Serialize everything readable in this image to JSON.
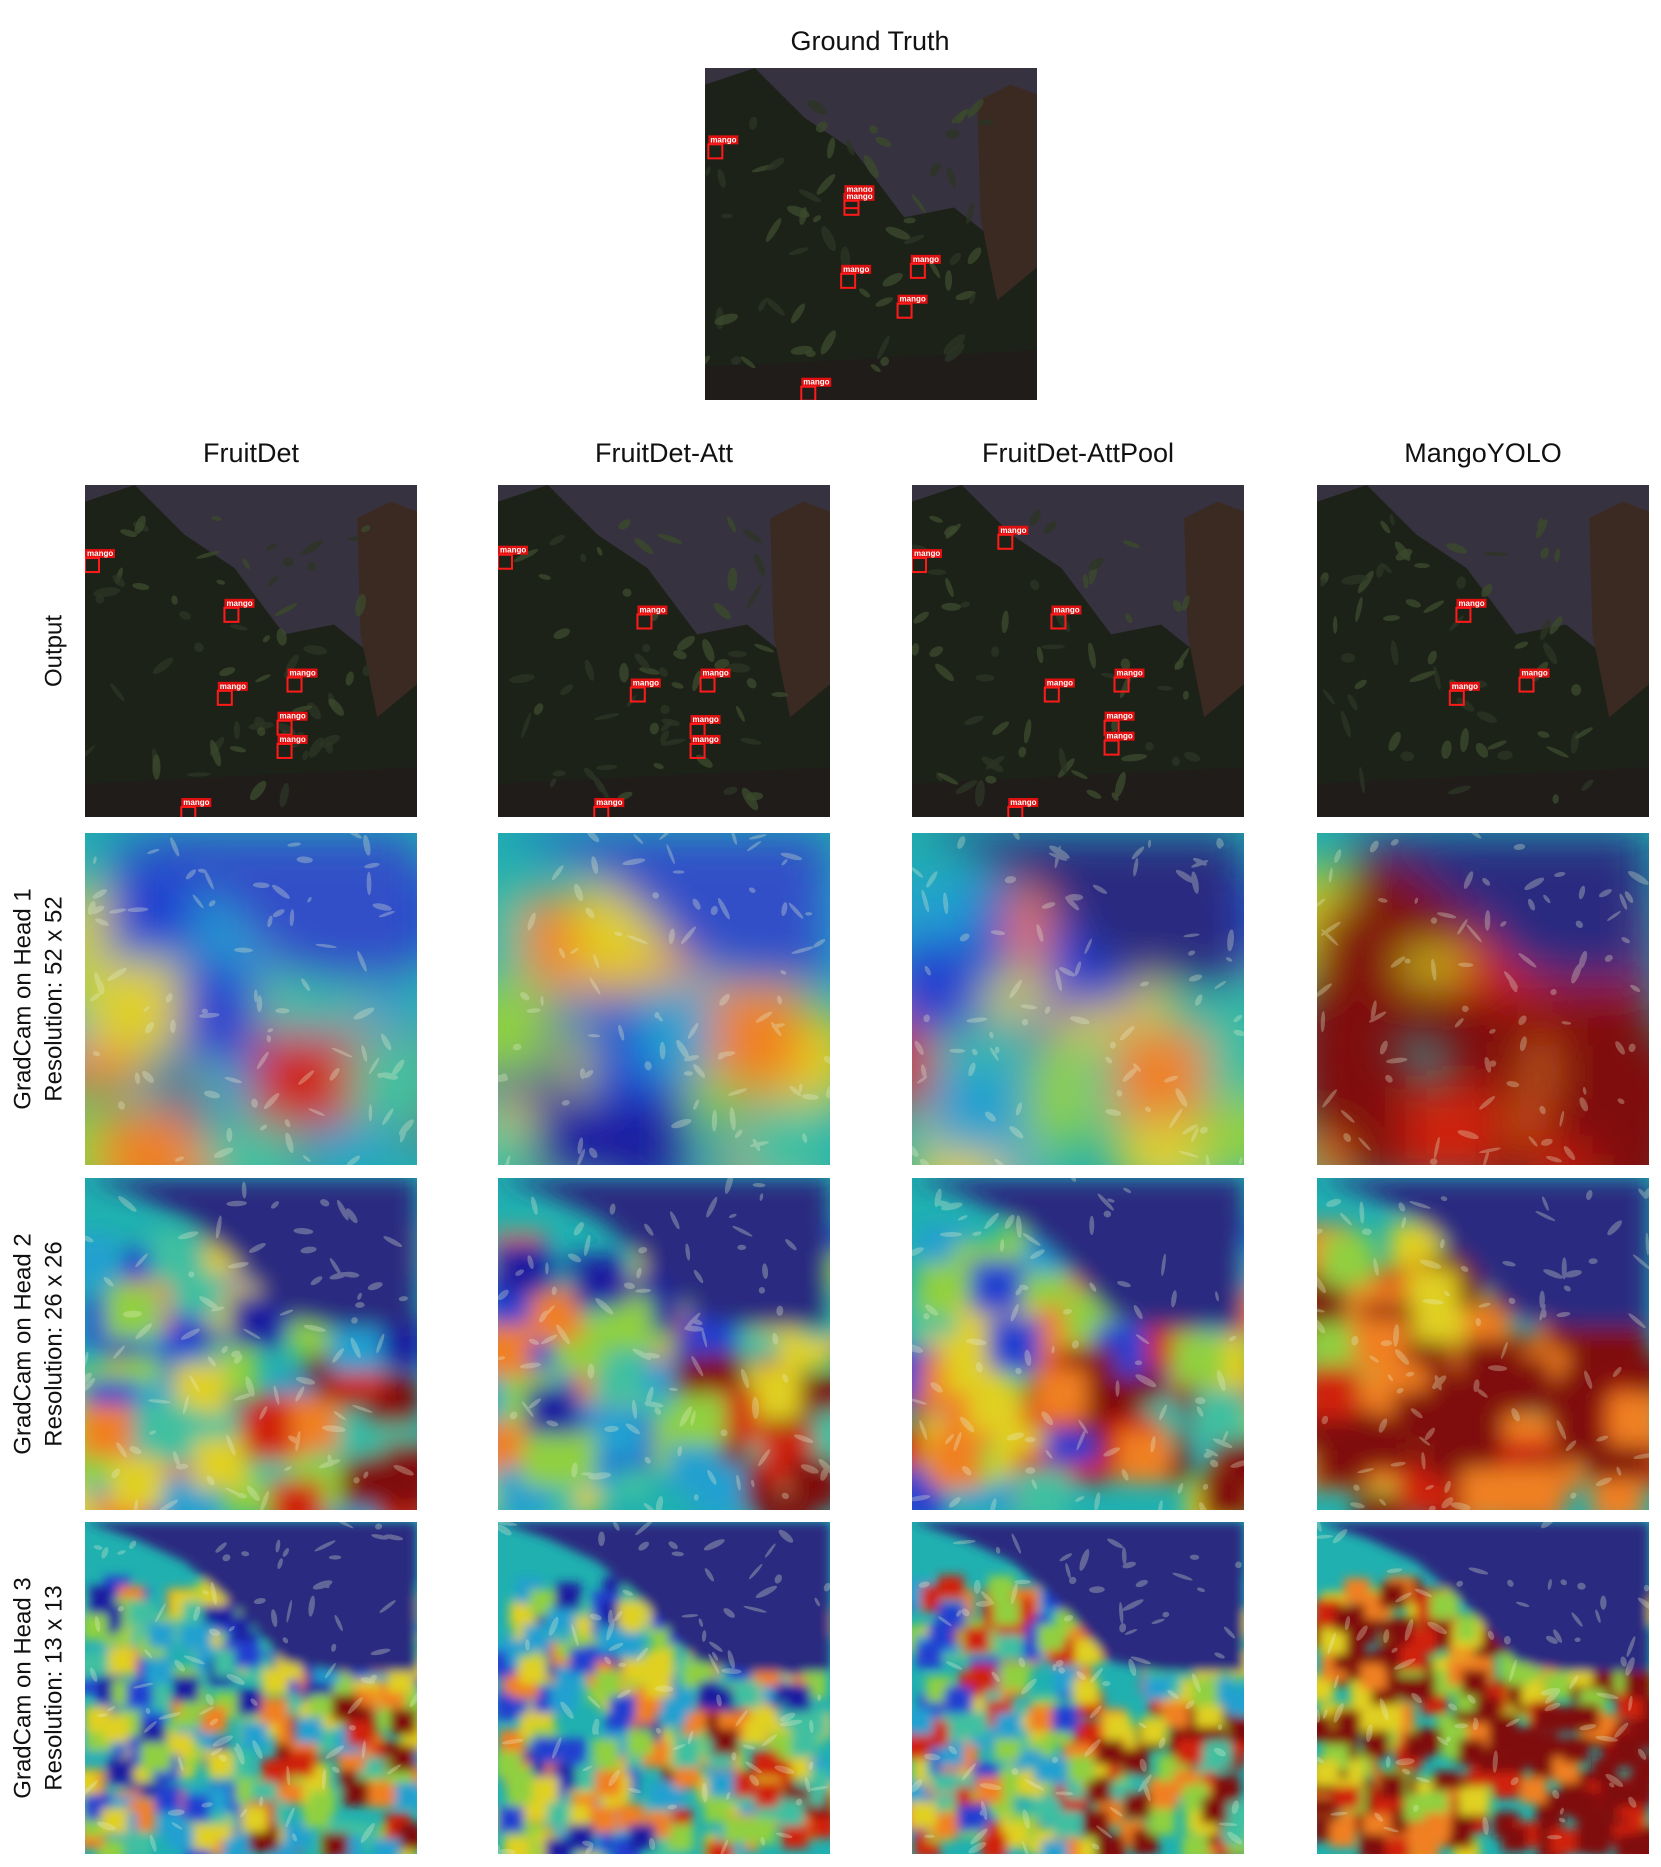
{
  "figure": {
    "title": "Ground Truth",
    "detection_label": "mango",
    "columns": [
      "FruitDet",
      "FruitDet-Att",
      "FruitDet-AttPool",
      "MangoYOLO"
    ],
    "rows": [
      [
        "Output"
      ],
      [
        "GradCam on Head 1",
        "Resolution: 52 x 52"
      ],
      [
        "GradCam on Head 2",
        "Resolution: 26 x 26"
      ],
      [
        "GradCam on Head 3",
        "Resolution: 13 x 13"
      ]
    ]
  }
}
